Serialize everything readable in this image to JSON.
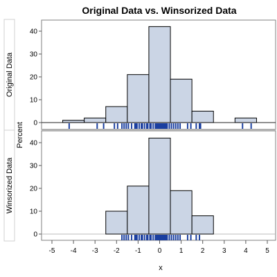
{
  "chart_data": {
    "type": "bar",
    "title": "Original Data vs. Winsorized Data",
    "xlabel": "x",
    "ylabel": "Percent",
    "xlim": [
      -5,
      5
    ],
    "ylim": [
      0,
      45
    ],
    "x_ticks": [
      "-5",
      "-4",
      "-3",
      "-2",
      "-1",
      "0",
      "1",
      "2",
      "3",
      "4",
      "5"
    ],
    "y_ticks": [
      "0",
      "10",
      "20",
      "30",
      "40"
    ],
    "bin_width": 1,
    "bar_fill": "#cbd5e5",
    "bar_stroke": "#000000",
    "rug_color": "#1a3fa0",
    "panels": [
      {
        "name": "Original Data",
        "bins": [
          {
            "center": -4,
            "percent": 1
          },
          {
            "center": -3,
            "percent": 2
          },
          {
            "center": -2,
            "percent": 7
          },
          {
            "center": -1,
            "percent": 21
          },
          {
            "center": 0,
            "percent": 42
          },
          {
            "center": 1,
            "percent": 19
          },
          {
            "center": 2,
            "percent": 5
          },
          {
            "center": 3,
            "percent": 0
          },
          {
            "center": 4,
            "percent": 2
          }
        ],
        "rug": [
          -4.2,
          -2.9,
          -2.6,
          -2.1,
          -1.95,
          -1.75,
          -1.65,
          -1.55,
          -1.45,
          -1.3,
          -1.15,
          -1.1,
          -1.05,
          -0.95,
          -0.85,
          -0.8,
          -0.7,
          -0.6,
          -0.55,
          -0.45,
          -0.4,
          -0.3,
          -0.2,
          -0.15,
          -0.1,
          -0.05,
          0.0,
          0.05,
          0.1,
          0.15,
          0.2,
          0.25,
          0.3,
          0.35,
          0.45,
          0.55,
          0.65,
          0.75,
          0.85,
          0.95,
          1.3,
          1.45,
          1.7,
          1.85,
          1.9,
          3.85,
          4.25
        ]
      },
      {
        "name": "Winsorized Data",
        "bins": [
          {
            "center": -2,
            "percent": 10
          },
          {
            "center": -1,
            "percent": 21
          },
          {
            "center": 0,
            "percent": 42
          },
          {
            "center": 1,
            "percent": 19
          },
          {
            "center": 2,
            "percent": 8
          }
        ],
        "rug": [
          -1.75,
          -1.65,
          -1.55,
          -1.45,
          -1.3,
          -1.15,
          -1.1,
          -1.05,
          -0.95,
          -0.85,
          -0.8,
          -0.7,
          -0.6,
          -0.55,
          -0.45,
          -0.4,
          -0.3,
          -0.2,
          -0.15,
          -0.1,
          -0.05,
          0.0,
          0.05,
          0.1,
          0.15,
          0.2,
          0.25,
          0.3,
          0.35,
          0.45,
          0.55,
          0.65,
          0.75,
          0.85,
          0.95,
          1.3,
          1.45,
          1.7,
          1.85
        ]
      }
    ]
  }
}
